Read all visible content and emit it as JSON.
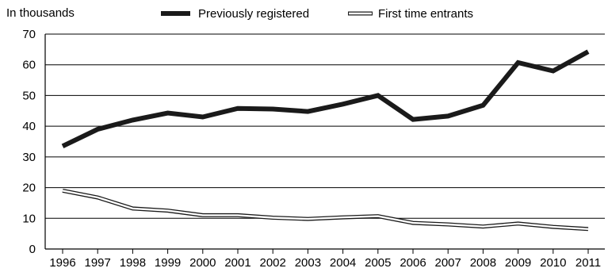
{
  "chart_data": {
    "type": "line",
    "ylabel": "In thousands",
    "x": [
      "1996",
      "1997",
      "1998",
      "1999",
      "2000",
      "2001",
      "2002",
      "2003",
      "2004",
      "2005",
      "2006",
      "2007",
      "2008",
      "2009",
      "2010",
      "2011"
    ],
    "ylim": [
      0,
      70
    ],
    "yticks": [
      0,
      10,
      20,
      30,
      40,
      50,
      60,
      70
    ],
    "grid": true,
    "legend_position": "top",
    "series": [
      {
        "name": "Previously registered",
        "style": "thick-solid",
        "color": "#1a1a1a",
        "values": [
          33.5,
          39,
          42,
          44.3,
          43,
          45.8,
          45.6,
          44.8,
          47.2,
          50,
          42.2,
          43.3,
          46.8,
          60.7,
          58,
          64.3
        ]
      },
      {
        "name": "First time entrants",
        "style": "hollow-double",
        "color": "#1a1a1a",
        "values": [
          19,
          16.8,
          13.2,
          12.5,
          11,
          11,
          10.2,
          9.8,
          10.3,
          10.7,
          8.5,
          8,
          7.3,
          8.3,
          7.2,
          6.5
        ]
      }
    ]
  }
}
